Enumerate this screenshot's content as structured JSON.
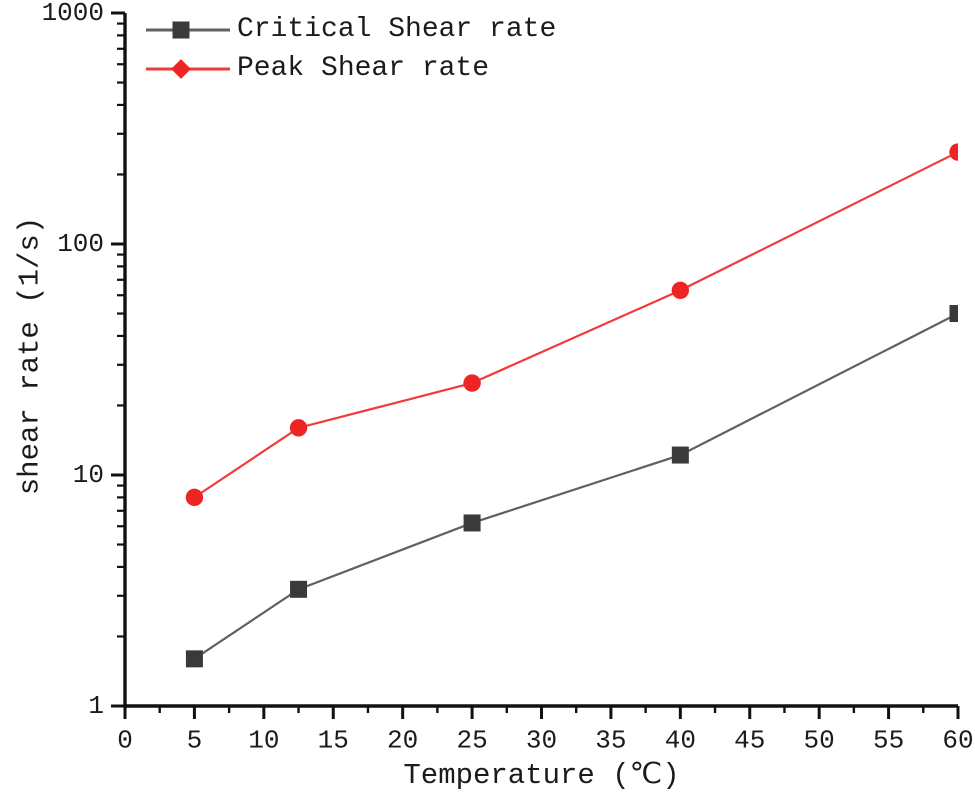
{
  "chart_data": {
    "type": "line",
    "title": "",
    "xlabel": "Temperature (℃)",
    "ylabel": "shear rate (1/s)",
    "x_scale": "linear",
    "y_scale": "log",
    "xlim": [
      0,
      60
    ],
    "ylim": [
      1,
      1000
    ],
    "grid": false,
    "legend_position": "top-left",
    "x": [
      5,
      12.5,
      25,
      40,
      60
    ],
    "series": [
      {
        "name": "Critical Shear rate",
        "values": [
          1.6,
          3.2,
          6.2,
          12.2,
          50
        ],
        "marker": "square",
        "line_color": "#606060",
        "marker_color": "#3a3a3a"
      },
      {
        "name": "Peak Shear rate",
        "values": [
          8,
          16,
          25,
          63,
          250
        ],
        "marker": "circle",
        "line_color": "#f13a3a",
        "marker_color": "#ee2525"
      }
    ],
    "x_major_ticks": [
      0,
      5,
      10,
      15,
      20,
      25,
      30,
      35,
      40,
      45,
      50,
      55,
      60
    ],
    "x_minor_step": 2.5,
    "y_major_ticks": [
      1,
      10,
      100,
      1000
    ],
    "y_minor_mantissas": [
      2,
      3,
      4,
      5,
      6,
      7,
      8,
      9
    ],
    "axis_color": "#111111",
    "text_color": "#1b1b1b"
  }
}
